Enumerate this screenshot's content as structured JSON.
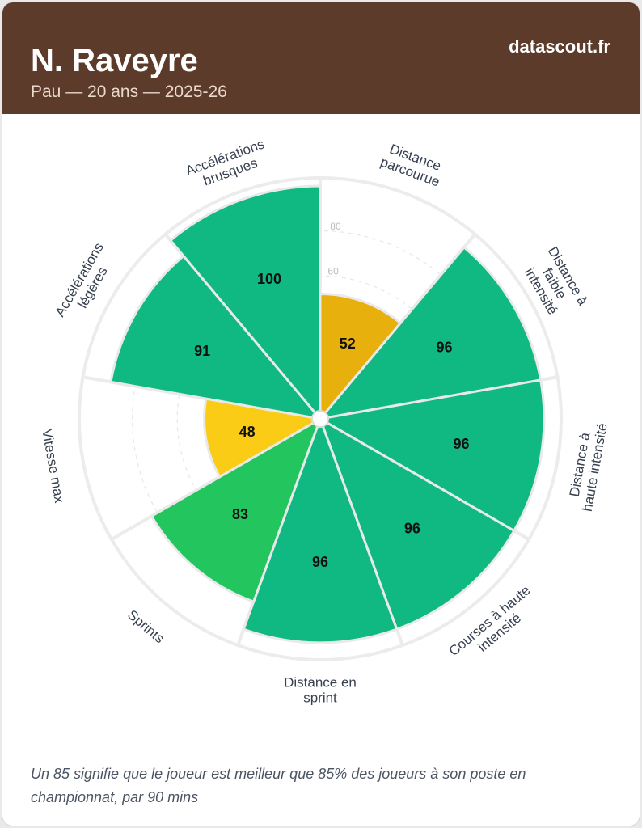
{
  "header": {
    "player_name": "N. Raveyre",
    "subtitle": "Pau — 20 ans — 2025-26",
    "brand": "datascout.fr"
  },
  "chart_data": {
    "type": "polar-bar",
    "title": "",
    "ylim": [
      0,
      100
    ],
    "grid_ticks": [
      60,
      80
    ],
    "tick_labels_shown": [
      "60",
      "80"
    ],
    "categories": [
      [
        "Distance",
        "parcourue"
      ],
      [
        "Distance à",
        "faible",
        "intensité"
      ],
      [
        "Distance à",
        "haute intensité"
      ],
      [
        "Courses à haute",
        "intensité"
      ],
      [
        "Distance en",
        "sprint"
      ],
      [
        "Sprints"
      ],
      [
        "Vitesse max"
      ],
      [
        "Accélérations",
        "légères"
      ],
      [
        "Accélérations",
        "brusques"
      ]
    ],
    "values": [
      52,
      96,
      96,
      96,
      96,
      83,
      48,
      91,
      100
    ],
    "value_labels": [
      "52",
      "96",
      "96",
      "96",
      "96",
      "83",
      "48",
      "91",
      "100"
    ],
    "colors": [
      "#e8b00c",
      "#10b981",
      "#10b981",
      "#10b981",
      "#10b981",
      "#22c55e",
      "#facc15",
      "#10b981",
      "#10b981"
    ]
  },
  "footnote": "Un 85 signifie que le joueur est meilleur que 85% des joueurs à son poste en championnat, par 90 mins"
}
